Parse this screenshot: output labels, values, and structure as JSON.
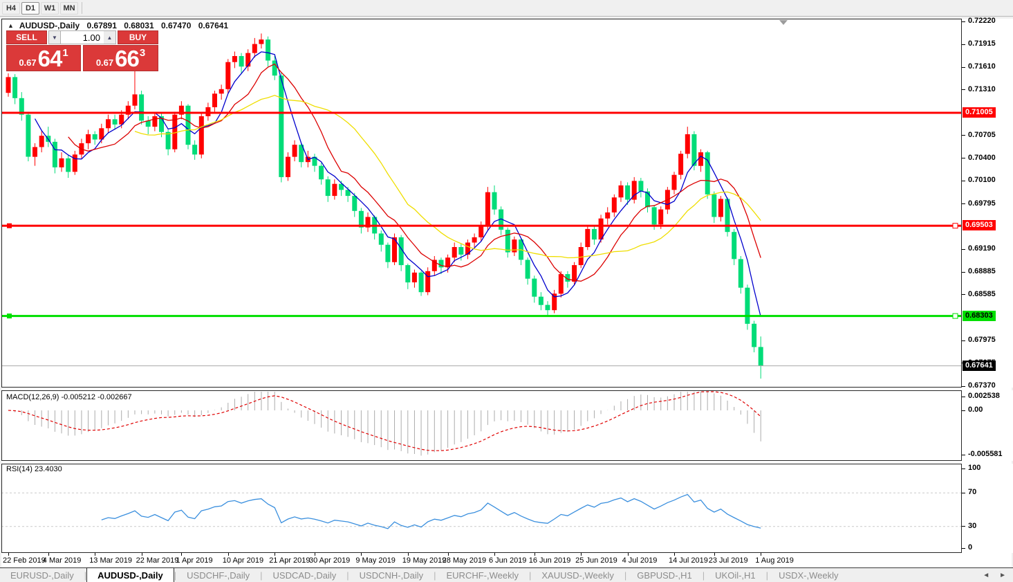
{
  "toolbar": {
    "timeframes": [
      {
        "label": "H4",
        "selected": false
      },
      {
        "label": "D1",
        "selected": true
      },
      {
        "label": "W1",
        "selected": false
      },
      {
        "label": "MN",
        "selected": false
      }
    ]
  },
  "chart_header": {
    "collapse_icon": "up-triangle",
    "symbol_label": "AUDUSD-,Daily",
    "open": "0.67891",
    "high": "0.68031",
    "low": "0.67470",
    "close": "0.67641"
  },
  "trade_panel": {
    "sell_label": "SELL",
    "buy_label": "BUY",
    "volume": "1.00",
    "spin_down_icon": "▼",
    "spin_up_icon": "▲",
    "sell_price": {
      "prefix": "0.67",
      "big": "64",
      "sup": "1"
    },
    "buy_price": {
      "prefix": "0.67",
      "big": "66",
      "sup": "3"
    }
  },
  "indicators": {
    "macd": {
      "name": "MACD",
      "fast": 12,
      "slow": 26,
      "smoothing": 9,
      "value": -0.005212,
      "signal_value": -0.002667,
      "label": "MACD(12,26,9) -0.005212 -0.002667",
      "axis_labels": [
        {
          "text": "0.002538",
          "value": 0.002538
        },
        {
          "text": "0.00",
          "value": 0
        },
        {
          "text": "-0.005581",
          "value": -0.005581
        }
      ]
    },
    "rsi": {
      "name": "RSI",
      "period": 14,
      "value": 23.403,
      "label": "RSI(14) 23.4030",
      "levels": [
        70,
        30
      ],
      "axis_labels": [
        {
          "text": "100",
          "value": 100
        },
        {
          "text": "70",
          "value": 70
        },
        {
          "text": "30",
          "value": 30
        },
        {
          "text": "0",
          "value": 0
        }
      ]
    }
  },
  "price_axis": {
    "labels": [
      "0.72220",
      "0.71915",
      "0.71610",
      "0.71310",
      "0.70705",
      "0.70400",
      "0.70100",
      "0.69795",
      "0.69190",
      "0.68885",
      "0.68585",
      "0.67975",
      "0.67675",
      "0.67370"
    ]
  },
  "time_axis": {
    "labels": [
      {
        "text": "22 Feb 2019",
        "index": 0
      },
      {
        "text": "4 Mar 2019",
        "index": 6
      },
      {
        "text": "13 Mar 2019",
        "index": 13
      },
      {
        "text": "22 Mar 2019",
        "index": 20
      },
      {
        "text": "1 Apr 2019",
        "index": 26
      },
      {
        "text": "10 Apr 2019",
        "index": 33
      },
      {
        "text": "21 Apr 2019",
        "index": 40
      },
      {
        "text": "30 Apr 2019",
        "index": 46
      },
      {
        "text": "9 May 2019",
        "index": 53
      },
      {
        "text": "19 May 2019",
        "index": 60
      },
      {
        "text": "28 May 2019",
        "index": 66
      },
      {
        "text": "6 Jun 2019",
        "index": 73
      },
      {
        "text": "16 Jun 2019",
        "index": 79
      },
      {
        "text": "25 Jun 2019",
        "index": 86
      },
      {
        "text": "4 Jul 2019",
        "index": 93
      },
      {
        "text": "14 Jul 2019",
        "index": 100
      },
      {
        "text": "23 Jul 2019",
        "index": 106
      },
      {
        "text": "1 Aug 2019",
        "index": 113
      }
    ]
  },
  "tabs": {
    "items": [
      {
        "label": "EURUSD-,Daily",
        "selected": false
      },
      {
        "label": "AUDUSD-,Daily",
        "selected": true
      },
      {
        "label": "USDCHF-,Daily",
        "selected": false
      },
      {
        "label": "USDCAD-,Daily",
        "selected": false
      },
      {
        "label": "USDCNH-,Daily",
        "selected": false
      },
      {
        "label": "EURCHF-,Weekly",
        "selected": false
      },
      {
        "label": "XAUUSD-,Weekly",
        "selected": false
      },
      {
        "label": "GBPUSD-,H1",
        "selected": false
      },
      {
        "label": "UKOil-,H1",
        "selected": false
      },
      {
        "label": "USDX-,Weekly",
        "selected": false
      }
    ],
    "scroll_left_icon": "◄",
    "scroll_right_icon": "►"
  },
  "colors": {
    "up": "#FF0000",
    "down": "#00DC78",
    "ma_fast": "#0000CD",
    "ma_mid": "#DC0000",
    "ma_slow": "#EFDE00",
    "macd_hist": "#ABABAB",
    "macd_signal": "#E00000",
    "rsi_line": "#3A8FDE",
    "level_dash": "#C8C8C8",
    "hline_red": "#FF0000",
    "hline_green": "#00DF00",
    "current_line": "#AAAAAA"
  },
  "chart_data": {
    "type": "candlestick",
    "symbol": "AUDUSD",
    "timeframe": "Daily",
    "price_top": 0.7222,
    "price_bottom": 0.6737,
    "moving_averages": [
      {
        "period": 5,
        "color": "#0000CD"
      },
      {
        "period": 10,
        "color": "#DC0000"
      },
      {
        "period": 20,
        "color": "#EFDE00"
      }
    ],
    "hlines": [
      {
        "price": 0.71005,
        "label": "0.71005",
        "color": "#FF0000",
        "label_fg": "#FFFFFF",
        "handles": false
      },
      {
        "price": 0.69503,
        "label": "0.69503",
        "color": "#FF0000",
        "label_fg": "#FFFFFF",
        "handles": true
      },
      {
        "price": 0.68303,
        "label": "0.68303",
        "color": "#00DF00",
        "label_fg": "#000000",
        "handles": true
      }
    ],
    "current_price": {
      "price": 0.67641,
      "label": "0.67641",
      "label_bg": "#000000",
      "label_fg": "#FFFFFF"
    },
    "candles": [
      [
        0.7127,
        0.7153,
        0.7122,
        0.7148
      ],
      [
        0.7148,
        0.7152,
        0.7112,
        0.712
      ],
      [
        0.712,
        0.7128,
        0.709,
        0.7098
      ],
      [
        0.7098,
        0.7102,
        0.7036,
        0.7042
      ],
      [
        0.7042,
        0.706,
        0.703,
        0.7055
      ],
      [
        0.7055,
        0.7076,
        0.7048,
        0.707
      ],
      [
        0.707,
        0.7082,
        0.7055,
        0.7062
      ],
      [
        0.7062,
        0.7066,
        0.702,
        0.7028
      ],
      [
        0.7028,
        0.7048,
        0.7022,
        0.704
      ],
      [
        0.704,
        0.7044,
        0.7014,
        0.7022
      ],
      [
        0.7022,
        0.705,
        0.7018,
        0.7045
      ],
      [
        0.7045,
        0.7066,
        0.704,
        0.706
      ],
      [
        0.706,
        0.7078,
        0.7052,
        0.7072
      ],
      [
        0.7072,
        0.7076,
        0.7058,
        0.7065
      ],
      [
        0.7065,
        0.7086,
        0.706,
        0.708
      ],
      [
        0.708,
        0.7098,
        0.7074,
        0.7092
      ],
      [
        0.7092,
        0.7098,
        0.7078,
        0.7085
      ],
      [
        0.7085,
        0.7104,
        0.708,
        0.7098
      ],
      [
        0.7098,
        0.7116,
        0.7092,
        0.711
      ],
      [
        0.711,
        0.7165,
        0.7105,
        0.7125
      ],
      [
        0.7125,
        0.713,
        0.7085,
        0.709
      ],
      [
        0.709,
        0.7096,
        0.7072,
        0.7082
      ],
      [
        0.7082,
        0.71,
        0.7076,
        0.7096
      ],
      [
        0.7096,
        0.71,
        0.7068,
        0.7075
      ],
      [
        0.7075,
        0.7078,
        0.7044,
        0.7052
      ],
      [
        0.7052,
        0.7102,
        0.7048,
        0.7098
      ],
      [
        0.7098,
        0.7116,
        0.7092,
        0.711
      ],
      [
        0.711,
        0.7112,
        0.7052,
        0.7058
      ],
      [
        0.7058,
        0.7064,
        0.7038,
        0.7045
      ],
      [
        0.7045,
        0.71,
        0.704,
        0.7096
      ],
      [
        0.7096,
        0.7114,
        0.709,
        0.7108
      ],
      [
        0.7108,
        0.713,
        0.7102,
        0.7126
      ],
      [
        0.7126,
        0.7138,
        0.7118,
        0.7132
      ],
      [
        0.7132,
        0.7172,
        0.7126,
        0.7168
      ],
      [
        0.7168,
        0.7182,
        0.716,
        0.7176
      ],
      [
        0.7176,
        0.718,
        0.7152,
        0.7162
      ],
      [
        0.7162,
        0.7185,
        0.7156,
        0.718
      ],
      [
        0.718,
        0.72,
        0.7174,
        0.7192
      ],
      [
        0.7192,
        0.7206,
        0.7186,
        0.7198
      ],
      [
        0.7198,
        0.7202,
        0.7162,
        0.717
      ],
      [
        0.717,
        0.7176,
        0.7144,
        0.715
      ],
      [
        0.715,
        0.7154,
        0.7008,
        0.7015
      ],
      [
        0.7015,
        0.7048,
        0.701,
        0.7042
      ],
      [
        0.7042,
        0.7064,
        0.7036,
        0.7058
      ],
      [
        0.7058,
        0.706,
        0.7028,
        0.7035
      ],
      [
        0.7035,
        0.705,
        0.7028,
        0.7042
      ],
      [
        0.7042,
        0.7046,
        0.7022,
        0.703
      ],
      [
        0.703,
        0.7034,
        0.7005,
        0.7012
      ],
      [
        0.7012,
        0.7016,
        0.6982,
        0.699
      ],
      [
        0.699,
        0.7012,
        0.6985,
        0.7006
      ],
      [
        0.7006,
        0.701,
        0.699,
        0.6998
      ],
      [
        0.6998,
        0.7002,
        0.6982,
        0.699
      ],
      [
        0.699,
        0.6994,
        0.6962,
        0.697
      ],
      [
        0.697,
        0.6974,
        0.694,
        0.6948
      ],
      [
        0.6948,
        0.6968,
        0.6942,
        0.6962
      ],
      [
        0.6962,
        0.6964,
        0.6932,
        0.694
      ],
      [
        0.694,
        0.6944,
        0.6916,
        0.6925
      ],
      [
        0.6925,
        0.6928,
        0.6894,
        0.6902
      ],
      [
        0.6902,
        0.694,
        0.6898,
        0.6935
      ],
      [
        0.6935,
        0.6938,
        0.689,
        0.6898
      ],
      [
        0.6898,
        0.69,
        0.6866,
        0.6875
      ],
      [
        0.6875,
        0.6892,
        0.6868,
        0.6888
      ],
      [
        0.6888,
        0.689,
        0.6857,
        0.6862
      ],
      [
        0.6862,
        0.6895,
        0.6858,
        0.689
      ],
      [
        0.689,
        0.691,
        0.6884,
        0.6905
      ],
      [
        0.6905,
        0.6908,
        0.6886,
        0.6895
      ],
      [
        0.6895,
        0.6912,
        0.6888,
        0.6908
      ],
      [
        0.6908,
        0.6928,
        0.6902,
        0.6922
      ],
      [
        0.6922,
        0.6926,
        0.6904,
        0.6912
      ],
      [
        0.6912,
        0.6932,
        0.6906,
        0.6928
      ],
      [
        0.6928,
        0.694,
        0.6922,
        0.6935
      ],
      [
        0.6935,
        0.6956,
        0.693,
        0.695
      ],
      [
        0.695,
        0.7002,
        0.6944,
        0.6995
      ],
      [
        0.6995,
        0.7004,
        0.6965,
        0.6972
      ],
      [
        0.6972,
        0.6976,
        0.6938,
        0.6945
      ],
      [
        0.6945,
        0.6948,
        0.6908,
        0.6915
      ],
      [
        0.6915,
        0.6936,
        0.691,
        0.6932
      ],
      [
        0.6932,
        0.6934,
        0.6898,
        0.6905
      ],
      [
        0.6905,
        0.6908,
        0.6872,
        0.688
      ],
      [
        0.688,
        0.6884,
        0.6848,
        0.6856
      ],
      [
        0.6856,
        0.6862,
        0.6838,
        0.6845
      ],
      [
        0.6845,
        0.685,
        0.6829,
        0.6838
      ],
      [
        0.6838,
        0.6865,
        0.6834,
        0.686
      ],
      [
        0.686,
        0.689,
        0.6855,
        0.6886
      ],
      [
        0.6886,
        0.689,
        0.6868,
        0.6876
      ],
      [
        0.6876,
        0.6902,
        0.6872,
        0.6898
      ],
      [
        0.6898,
        0.6928,
        0.6894,
        0.6922
      ],
      [
        0.6922,
        0.695,
        0.6918,
        0.6946
      ],
      [
        0.6946,
        0.695,
        0.6925,
        0.6932
      ],
      [
        0.6932,
        0.6965,
        0.6928,
        0.696
      ],
      [
        0.696,
        0.6975,
        0.6952,
        0.6968
      ],
      [
        0.6968,
        0.6992,
        0.6962,
        0.6988
      ],
      [
        0.6988,
        0.701,
        0.6982,
        0.7004
      ],
      [
        0.7004,
        0.7008,
        0.6978,
        0.6985
      ],
      [
        0.6985,
        0.7015,
        0.698,
        0.701
      ],
      [
        0.701,
        0.7014,
        0.6988,
        0.6996
      ],
      [
        0.6996,
        0.7,
        0.6968,
        0.6975
      ],
      [
        0.6975,
        0.6978,
        0.6945,
        0.6952
      ],
      [
        0.6952,
        0.6976,
        0.6946,
        0.6972
      ],
      [
        0.6972,
        0.7002,
        0.6966,
        0.6998
      ],
      [
        0.6998,
        0.7022,
        0.6992,
        0.7018
      ],
      [
        0.7018,
        0.705,
        0.7012,
        0.7046
      ],
      [
        0.7046,
        0.7082,
        0.704,
        0.7072
      ],
      [
        0.7072,
        0.7076,
        0.7024,
        0.703
      ],
      [
        0.703,
        0.7052,
        0.7022,
        0.7048
      ],
      [
        0.7048,
        0.705,
        0.6986,
        0.6992
      ],
      [
        0.6992,
        0.6996,
        0.6954,
        0.6962
      ],
      [
        0.6962,
        0.699,
        0.6956,
        0.6986
      ],
      [
        0.6986,
        0.6988,
        0.6936,
        0.6942
      ],
      [
        0.6942,
        0.6946,
        0.6898,
        0.6906
      ],
      [
        0.6906,
        0.691,
        0.686,
        0.6868
      ],
      [
        0.6868,
        0.6872,
        0.6812,
        0.682
      ],
      [
        0.682,
        0.6824,
        0.6782,
        0.6789
      ],
      [
        0.67891,
        0.68031,
        0.6747,
        0.67641
      ]
    ]
  }
}
